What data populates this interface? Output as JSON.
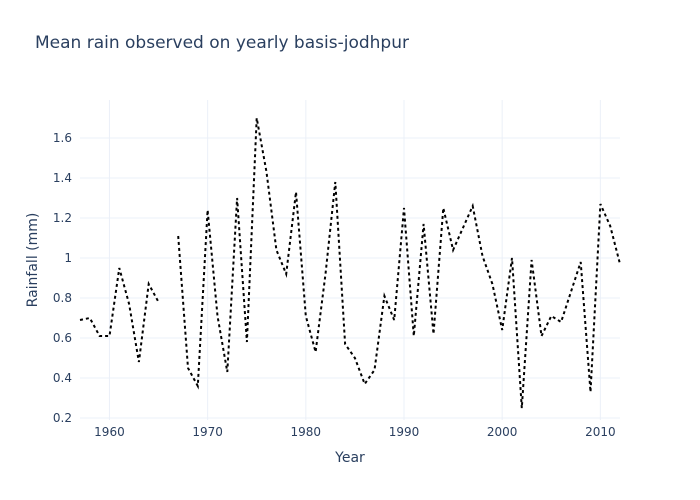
{
  "chart_data": {
    "type": "line",
    "title": "Mean rain observed on yearly basis-jodhpur",
    "xlabel": "Year",
    "ylabel": "Rainfall (mm)",
    "xlim": [
      1957,
      2012
    ],
    "ylim": [
      0.19,
      1.79
    ],
    "x_ticks": [
      1960,
      1970,
      1980,
      1990,
      2000,
      2010
    ],
    "y_ticks": [
      0.2,
      0.4,
      0.6,
      0.8,
      1,
      1.2,
      1.4,
      1.6
    ],
    "y_tick_labels": [
      "0.2",
      "0.4",
      "0.6",
      "0.8",
      "1",
      "1.2",
      "1.4",
      "1.6"
    ],
    "grid": true,
    "line_color": "#000000",
    "line_style": "dotted",
    "series": [
      {
        "x": [
          1957,
          1958,
          1959,
          1960,
          1961,
          1962,
          1963,
          1964,
          1965,
          1966,
          1967,
          1968,
          1969,
          1970,
          1971,
          1972,
          1973,
          1974,
          1975,
          1976,
          1977,
          1978,
          1979,
          1980,
          1981,
          1982,
          1983,
          1984,
          1985,
          1986,
          1987,
          1988,
          1989,
          1990,
          1991,
          1992,
          1993,
          1994,
          1995,
          1996,
          1997,
          1998,
          1999,
          2000,
          2001,
          2002,
          2003,
          2004,
          2005,
          2006,
          2007,
          2008,
          2009,
          2010,
          2011,
          2012
        ],
        "y": [
          0.69,
          0.7,
          0.61,
          0.61,
          0.95,
          0.77,
          0.48,
          0.87,
          0.78,
          null,
          1.11,
          0.45,
          0.36,
          1.24,
          0.71,
          0.43,
          1.3,
          0.58,
          1.7,
          1.43,
          1.04,
          0.92,
          1.33,
          0.71,
          0.53,
          0.92,
          1.38,
          0.57,
          0.5,
          0.37,
          0.44,
          0.81,
          0.69,
          1.25,
          0.61,
          1.17,
          0.62,
          1.25,
          1.04,
          1.15,
          1.26,
          1.01,
          0.87,
          0.64,
          1.0,
          0.25,
          0.99,
          0.61,
          0.71,
          0.68,
          0.83,
          0.98,
          0.33,
          1.27,
          1.16,
          0.97
        ]
      }
    ]
  }
}
